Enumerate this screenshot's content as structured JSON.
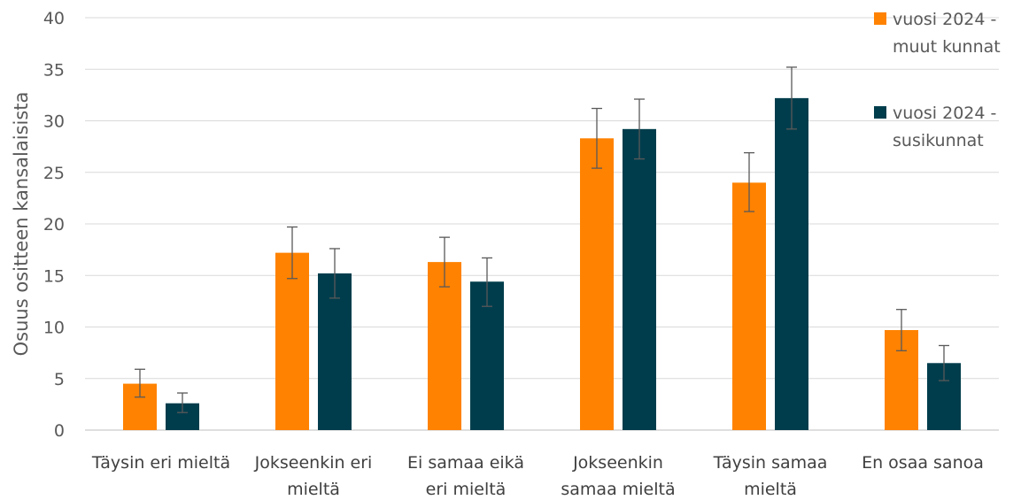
{
  "chart_data": {
    "type": "bar",
    "ylabel": "Osuus ositteen kansalaisista",
    "xlabel": "",
    "ylim": [
      0,
      40
    ],
    "yticks": [
      0,
      5,
      10,
      15,
      20,
      25,
      30,
      35,
      40
    ],
    "categories": [
      [
        "Täysin eri mieltä"
      ],
      [
        "Jokseenkin eri",
        "mieltä"
      ],
      [
        "Ei samaa eikä",
        "eri mieltä"
      ],
      [
        "Jokseenkin",
        "samaa mieltä"
      ],
      [
        "Täysin samaa",
        "mieltä"
      ],
      [
        "En osaa sanoa"
      ]
    ],
    "series": [
      {
        "name": [
          "vuosi 2024 -",
          "muut kunnat"
        ],
        "color": "#ff8200",
        "values": [
          4.5,
          17.2,
          16.3,
          28.3,
          24.0,
          9.7
        ],
        "error_low": [
          3.2,
          14.7,
          13.9,
          25.4,
          21.2,
          7.7
        ],
        "error_high": [
          5.9,
          19.7,
          18.7,
          31.2,
          26.9,
          11.7
        ]
      },
      {
        "name": [
          "vuosi 2024 -",
          "susikunnat"
        ],
        "color": "#003d4c",
        "values": [
          2.6,
          15.2,
          14.4,
          29.2,
          32.2,
          6.5
        ],
        "error_low": [
          1.7,
          12.8,
          12.0,
          26.3,
          29.2,
          4.8
        ],
        "error_high": [
          3.6,
          17.6,
          16.7,
          32.1,
          35.2,
          8.2
        ]
      }
    ],
    "grid": true,
    "legend": "top-right"
  }
}
